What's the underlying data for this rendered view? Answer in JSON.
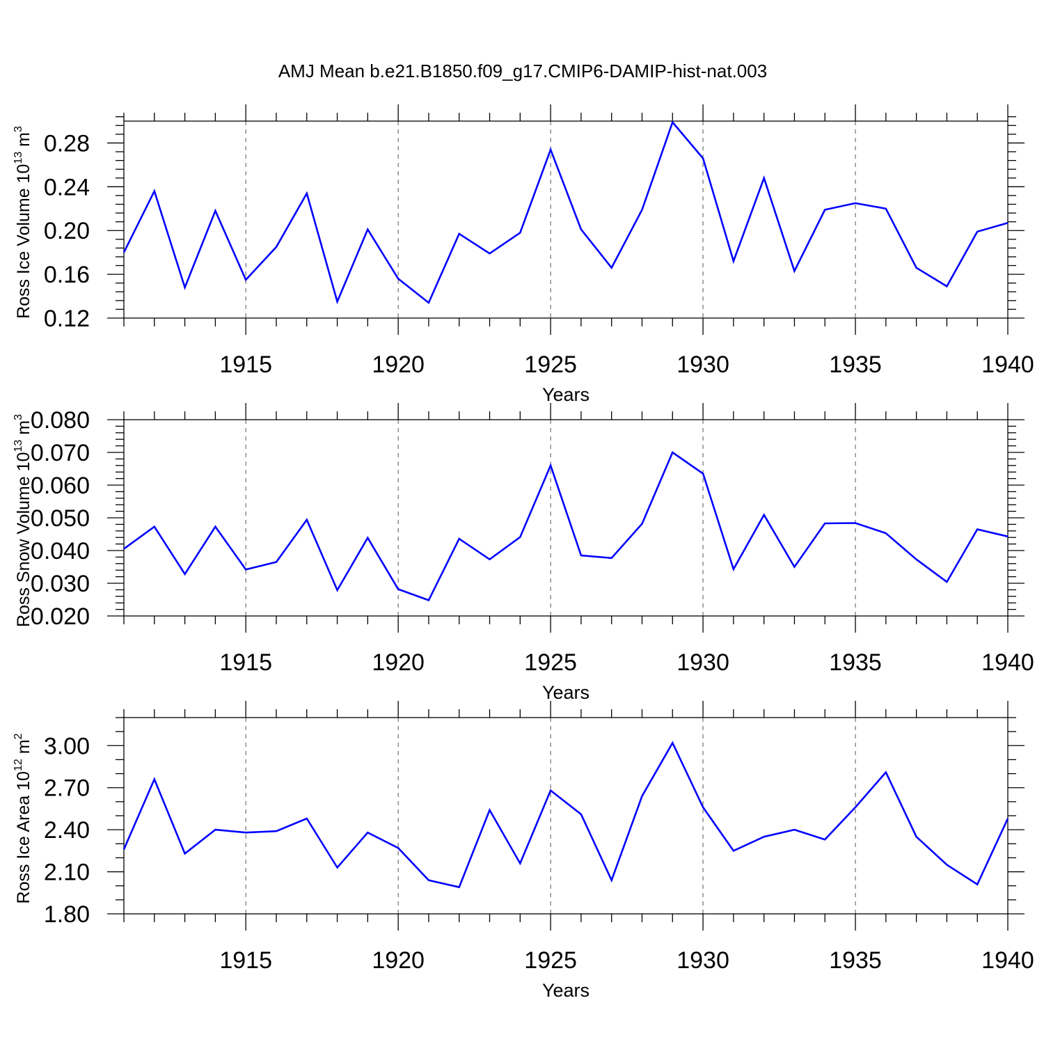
{
  "title": "AMJ Mean b.e21.B1850.f09_g17.CMIP6-DAMIP-hist-nat.003",
  "chart_data": [
    {
      "type": "line",
      "xlabel": "Years",
      "ylabel": "Ross Ice Volume 10",
      "ylabel_exp": "13",
      "ylabel_unit": " m",
      "ylabel_unit_exp": "3",
      "xlim": [
        1911,
        1940
      ],
      "ylim": [
        0.12,
        0.3
      ],
      "xticks": [
        1915,
        1920,
        1925,
        1930,
        1935,
        1940
      ],
      "xtick_labels": [
        "1915",
        "1920",
        "1925",
        "1930",
        "1935",
        "1940"
      ],
      "yticks": [
        0.12,
        0.16,
        0.2,
        0.24,
        0.28
      ],
      "ytick_labels": [
        "0.12",
        "0.16",
        "0.20",
        "0.24",
        "0.28"
      ],
      "ymajor_step": 0.04,
      "yminor_step": 0.008,
      "grid": "vertical dashed at major x ticks",
      "color": "#0000ff",
      "x": [
        1911,
        1912,
        1913,
        1914,
        1915,
        1916,
        1917,
        1918,
        1919,
        1920,
        1921,
        1922,
        1923,
        1924,
        1925,
        1926,
        1927,
        1928,
        1929,
        1930,
        1931,
        1932,
        1933,
        1934,
        1935,
        1936,
        1937,
        1938,
        1939,
        1940
      ],
      "values": [
        0.18,
        0.236,
        0.148,
        0.218,
        0.155,
        0.185,
        0.234,
        0.135,
        0.201,
        0.156,
        0.134,
        0.197,
        0.179,
        0.198,
        0.274,
        0.201,
        0.166,
        0.219,
        0.299,
        0.266,
        0.172,
        0.248,
        0.163,
        0.219,
        0.225,
        0.22,
        0.166,
        0.149,
        0.199,
        0.207
      ]
    },
    {
      "type": "line",
      "xlabel": "Years",
      "ylabel": "Ross Snow Volume 10",
      "ylabel_exp": "13",
      "ylabel_unit": " m",
      "ylabel_unit_exp": "3",
      "xlim": [
        1911,
        1940
      ],
      "ylim": [
        0.02,
        0.08
      ],
      "xticks": [
        1915,
        1920,
        1925,
        1930,
        1935,
        1940
      ],
      "xtick_labels": [
        "1915",
        "1920",
        "1925",
        "1930",
        "1935",
        "1940"
      ],
      "yticks": [
        0.02,
        0.03,
        0.04,
        0.05,
        0.06,
        0.07,
        0.08
      ],
      "ytick_labels": [
        "0.020",
        "0.030",
        "0.040",
        "0.050",
        "0.060",
        "0.070",
        "0.080"
      ],
      "ymajor_step": 0.01,
      "yminor_step": 0.002,
      "grid": "vertical dashed at major x ticks",
      "color": "#0000ff",
      "x": [
        1911,
        1912,
        1913,
        1914,
        1915,
        1916,
        1917,
        1918,
        1919,
        1920,
        1921,
        1922,
        1923,
        1924,
        1925,
        1926,
        1927,
        1928,
        1929,
        1930,
        1931,
        1932,
        1933,
        1934,
        1935,
        1936,
        1937,
        1938,
        1939,
        1940
      ],
      "values": [
        0.0405,
        0.0473,
        0.0328,
        0.0473,
        0.0342,
        0.0365,
        0.0494,
        0.0279,
        0.0439,
        0.0282,
        0.0248,
        0.0436,
        0.0373,
        0.0441,
        0.066,
        0.0385,
        0.0377,
        0.0482,
        0.07,
        0.0635,
        0.0343,
        0.0509,
        0.035,
        0.0483,
        0.0484,
        0.0453,
        0.0373,
        0.0304,
        0.0465,
        0.0443
      ]
    },
    {
      "type": "line",
      "xlabel": "Years",
      "ylabel": "Ross Ice Area 10",
      "ylabel_exp": "12",
      "ylabel_unit": " m",
      "ylabel_unit_exp": "2",
      "xlim": [
        1911,
        1940
      ],
      "ylim": [
        1.8,
        3.2
      ],
      "xticks": [
        1915,
        1920,
        1925,
        1930,
        1935,
        1940
      ],
      "xtick_labels": [
        "1915",
        "1920",
        "1925",
        "1930",
        "1935",
        "1940"
      ],
      "yticks": [
        1.8,
        2.1,
        2.4,
        2.7,
        3.0
      ],
      "ytick_labels": [
        "1.80",
        "2.10",
        "2.40",
        "2.70",
        "3.00"
      ],
      "ymajor_step": 0.3,
      "yminor_step": 0.1,
      "grid": "vertical dashed at major x ticks",
      "color": "#0000ff",
      "x": [
        1911,
        1912,
        1913,
        1914,
        1915,
        1916,
        1917,
        1918,
        1919,
        1920,
        1921,
        1922,
        1923,
        1924,
        1925,
        1926,
        1927,
        1928,
        1929,
        1930,
        1931,
        1932,
        1933,
        1934,
        1935,
        1936,
        1937,
        1938,
        1939,
        1940
      ],
      "values": [
        2.26,
        2.76,
        2.23,
        2.4,
        2.38,
        2.39,
        2.48,
        2.13,
        2.38,
        2.27,
        2.04,
        1.99,
        2.54,
        2.16,
        2.68,
        2.51,
        2.04,
        2.64,
        3.02,
        2.56,
        2.25,
        2.35,
        2.4,
        2.33,
        2.56,
        2.81,
        2.35,
        2.15,
        2.01,
        2.48
      ]
    }
  ]
}
